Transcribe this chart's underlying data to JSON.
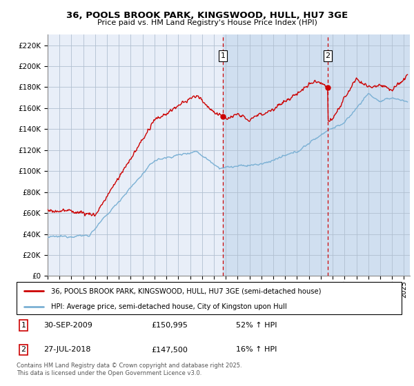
{
  "title1": "36, POOLS BROOK PARK, KINGSWOOD, HULL, HU7 3GE",
  "title2": "Price paid vs. HM Land Registry's House Price Index (HPI)",
  "ylim": [
    0,
    230000
  ],
  "yticks": [
    0,
    20000,
    40000,
    60000,
    80000,
    100000,
    120000,
    140000,
    160000,
    180000,
    200000,
    220000
  ],
  "xlim_start": 1995.0,
  "xlim_end": 2025.5,
  "purchase1_date": 2009.75,
  "purchase1_price": 150995,
  "purchase2_date": 2018.58,
  "purchase2_price": 147500,
  "legend_line1": "36, POOLS BROOK PARK, KINGSWOOD, HULL, HU7 3GE (semi-detached house)",
  "legend_line2": "HPI: Average price, semi-detached house, City of Kingston upon Hull",
  "footnote": "Contains HM Land Registry data © Crown copyright and database right 2025.\nThis data is licensed under the Open Government Licence v3.0.",
  "red_color": "#cc0000",
  "blue_color": "#7ab0d4",
  "chart_bg": "#e8eef8",
  "shade_color": "#d0dff0",
  "grid_color": "#b0bfd0",
  "vline_color": "#cc0000"
}
